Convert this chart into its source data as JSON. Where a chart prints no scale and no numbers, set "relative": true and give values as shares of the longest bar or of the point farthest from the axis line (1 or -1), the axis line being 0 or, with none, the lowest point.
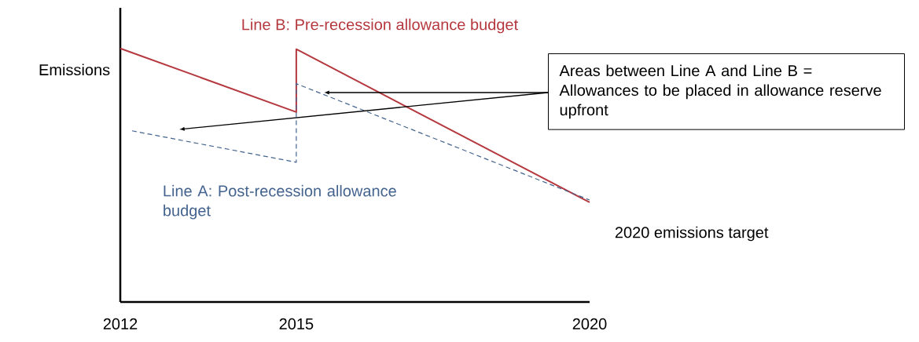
{
  "chart_data": {
    "type": "line",
    "relative": true,
    "ylabel": "Emissions",
    "xlim": [
      2012,
      2020
    ],
    "xticks": [
      2012,
      2015,
      2020
    ],
    "series": [
      {
        "name": "Line B: Pre-recession allowance budget",
        "color": "#b5383f",
        "line_style": "solid",
        "x": [
          2012,
          2015,
          2015,
          2020
        ],
        "values": [
          1,
          0.749,
          0.997,
          0.393
        ]
      },
      {
        "name": "Line A: Post-recession allowance budget",
        "color": "#44648f",
        "line_style": "dashed",
        "x": [
          2012.2,
          2015,
          2015,
          2020
        ],
        "values": [
          0.675,
          0.551,
          0.861,
          0.402
        ]
      }
    ],
    "annotations": [
      "Areas between Line A and Line B = Allowances to be placed in allowance reserve upfront",
      "2020 emissions target"
    ],
    "marker": "none"
  }
}
